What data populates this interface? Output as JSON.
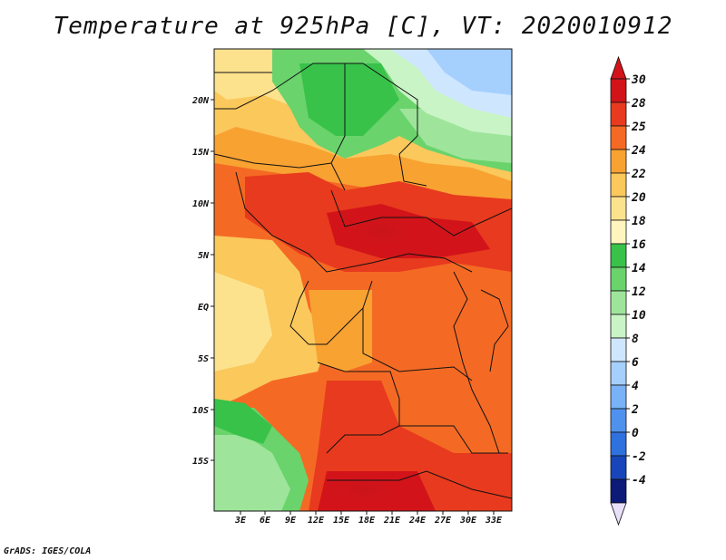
{
  "title": "Temperature at 925hPa [C], VT: 2020010912",
  "credit": "GrADS: IGES/COLA",
  "map": {
    "lat_labels": [
      "20N",
      "15N",
      "10N",
      "5N",
      "EQ",
      "5S",
      "10S",
      "15S"
    ],
    "lon_labels": [
      "3E",
      "6E",
      "9E",
      "12E",
      "15E",
      "18E",
      "21E",
      "24E",
      "27E",
      "30E",
      "33E"
    ]
  },
  "colorbar": {
    "labels": [
      "30",
      "28",
      "25",
      "24",
      "22",
      "20",
      "18",
      "16",
      "14",
      "12",
      "10",
      "8",
      "6",
      "4",
      "2",
      "0",
      "-2",
      "-4"
    ],
    "colors": [
      "#d2141a",
      "#e83a1e",
      "#f46a24",
      "#f8a232",
      "#fbc85c",
      "#fde28e",
      "#fff5bd",
      "#38c24a",
      "#6ad36c",
      "#9ee59b",
      "#c9f4c6",
      "#cfe6ff",
      "#a5cffd",
      "#79b2f6",
      "#4f92ee",
      "#2f71dd",
      "#1846ba",
      "#0c1a78"
    ]
  }
}
